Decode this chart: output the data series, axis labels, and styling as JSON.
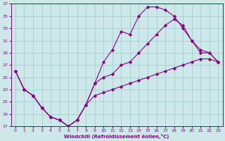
{
  "xlabel": "Windchill (Refroidissement éolien,°C)",
  "bg_color": "#cce8e8",
  "grid_color": "#aacccc",
  "line_color": "#880088",
  "xlim": [
    -0.5,
    23.5
  ],
  "ylim": [
    17,
    37
  ],
  "xticks": [
    0,
    1,
    2,
    3,
    4,
    5,
    6,
    7,
    8,
    9,
    10,
    11,
    12,
    13,
    14,
    15,
    16,
    17,
    18,
    19,
    20,
    21,
    22,
    23
  ],
  "yticks": [
    17,
    19,
    21,
    23,
    25,
    27,
    29,
    31,
    33,
    35,
    37
  ],
  "series1_x": [
    0,
    1,
    2,
    3,
    4,
    5,
    6,
    7,
    8,
    9,
    10,
    11,
    12,
    13,
    14,
    15,
    16,
    17,
    18,
    19,
    20,
    21,
    22,
    23
  ],
  "series1_y": [
    26,
    23,
    22,
    20,
    18.5,
    18,
    17,
    18,
    20.5,
    24,
    27.5,
    29.5,
    32.5,
    32,
    35,
    36.5,
    36.5,
    36,
    35,
    33,
    31,
    29,
    29,
    27.5
  ],
  "series2_x": [
    0,
    1,
    2,
    3,
    4,
    5,
    6,
    7,
    8,
    9,
    10,
    11,
    12,
    13,
    14,
    15,
    16,
    17,
    18,
    19,
    20,
    21,
    22,
    23
  ],
  "series2_y": [
    26,
    23,
    22,
    20,
    18.5,
    18,
    17,
    18,
    20.5,
    24,
    25,
    25.5,
    27,
    27.5,
    29,
    30.5,
    32,
    33.5,
    34.5,
    33.5,
    31,
    29.5,
    29,
    27.5
  ],
  "series3_x": [
    0,
    1,
    2,
    3,
    4,
    5,
    6,
    7,
    8,
    9,
    10,
    11,
    12,
    13,
    14,
    15,
    16,
    17,
    18,
    19,
    20,
    21,
    22,
    23
  ],
  "series3_y": [
    26,
    23,
    22,
    20,
    18.5,
    18,
    17,
    18,
    20.5,
    22,
    22.5,
    23,
    23.5,
    24,
    24.5,
    25,
    25.5,
    26,
    26.5,
    27,
    27.5,
    28,
    28,
    27.5
  ]
}
